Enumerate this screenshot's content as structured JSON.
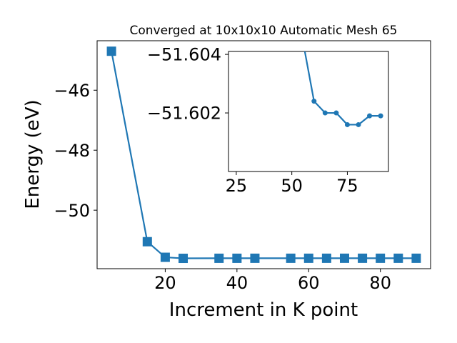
{
  "chart_data": [
    {
      "type": "line",
      "title": "Converged at 10x10x10 Automatic Mesh 65",
      "xlabel": "Increment in K point",
      "ylabel": "Energy (eV)",
      "xlim": [
        1,
        94
      ],
      "ylim": [
        -51.95,
        -44.35
      ],
      "xticks": [
        20,
        40,
        60,
        80
      ],
      "yticks": [
        -50,
        -48,
        -46
      ],
      "xtick_labels": [
        "20",
        "40",
        "60",
        "80"
      ],
      "ytick_labels": [
        "−50",
        "−48",
        "−46"
      ],
      "grid": false,
      "marker": "square",
      "color": "#1f77b4",
      "series": [
        {
          "x": [
            5,
            15,
            20,
            25,
            35,
            40,
            45,
            55,
            60,
            65,
            70,
            75,
            80,
            85,
            90
          ],
          "y": [
            -44.7,
            -51.05,
            -51.57,
            -51.605,
            -51.6025,
            -51.6025,
            -51.6018,
            -51.6018,
            -51.6018,
            -51.6018,
            -51.6016,
            -51.6016,
            -51.6018,
            -51.6018,
            -51.6018
          ]
        }
      ]
    },
    {
      "type": "line",
      "title": "",
      "xlabel": "",
      "ylabel": "",
      "xlim": [
        21.5,
        93.5
      ],
      "ylim": [
        -51.6,
        -51.6041
      ],
      "xticks": [
        25,
        50,
        75
      ],
      "yticks": [
        -51.604,
        -51.602
      ],
      "xtick_labels": [
        "25",
        "50",
        "75"
      ],
      "ytick_labels": [
        "−51.604",
        "−51.602"
      ],
      "grid": false,
      "marker": "circle",
      "color": "#1f77b4",
      "series": [
        {
          "x": [
            50,
            60,
            65,
            70,
            75,
            80,
            85,
            90
          ],
          "y": [
            -51.6065,
            -51.6024,
            -51.602,
            -51.602,
            -51.6016,
            -51.6016,
            -51.6019,
            -51.6019
          ]
        }
      ]
    }
  ]
}
